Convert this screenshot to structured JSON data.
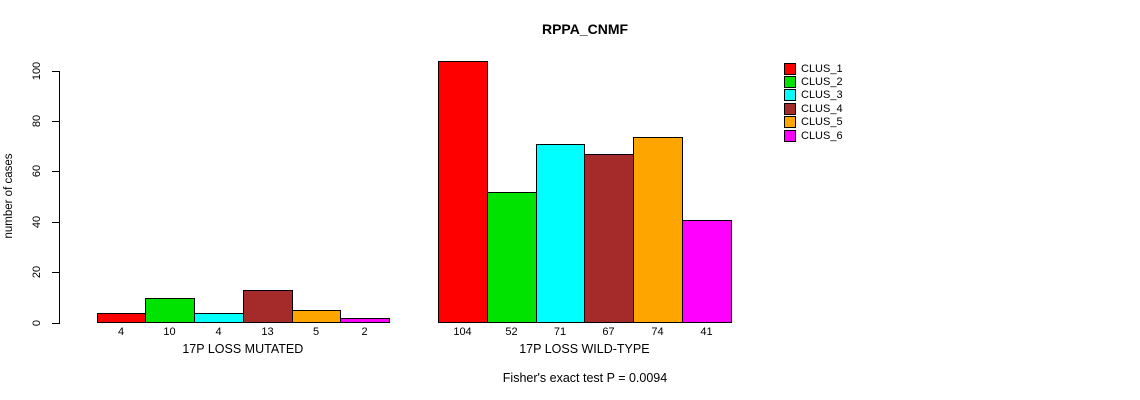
{
  "chart_data": {
    "type": "bar",
    "title": "RPPA_CNMF",
    "ylabel": "number of cases",
    "xlabel": "",
    "yticks": [
      0,
      20,
      40,
      60,
      80,
      100
    ],
    "ylim": [
      0,
      105
    ],
    "grid": false,
    "legend_position": "right",
    "annotation": "Fisher's exact test P = 0.0094",
    "groups": [
      {
        "label": "17P LOSS MUTATED",
        "values": [
          4,
          10,
          4,
          13,
          5,
          2
        ]
      },
      {
        "label": "17P LOSS WILD-TYPE",
        "values": [
          104,
          52,
          71,
          67,
          74,
          41
        ]
      }
    ],
    "series": [
      {
        "name": "CLUS_1",
        "color": "#FF0000"
      },
      {
        "name": "CLUS_2",
        "color": "#00E300"
      },
      {
        "name": "CLUS_3",
        "color": "#00FFFF"
      },
      {
        "name": "CLUS_4",
        "color": "#A52A2A"
      },
      {
        "name": "CLUS_5",
        "color": "#FFA500"
      },
      {
        "name": "CLUS_6",
        "color": "#FF00FF"
      }
    ],
    "bar_value_labels_shown": true
  }
}
